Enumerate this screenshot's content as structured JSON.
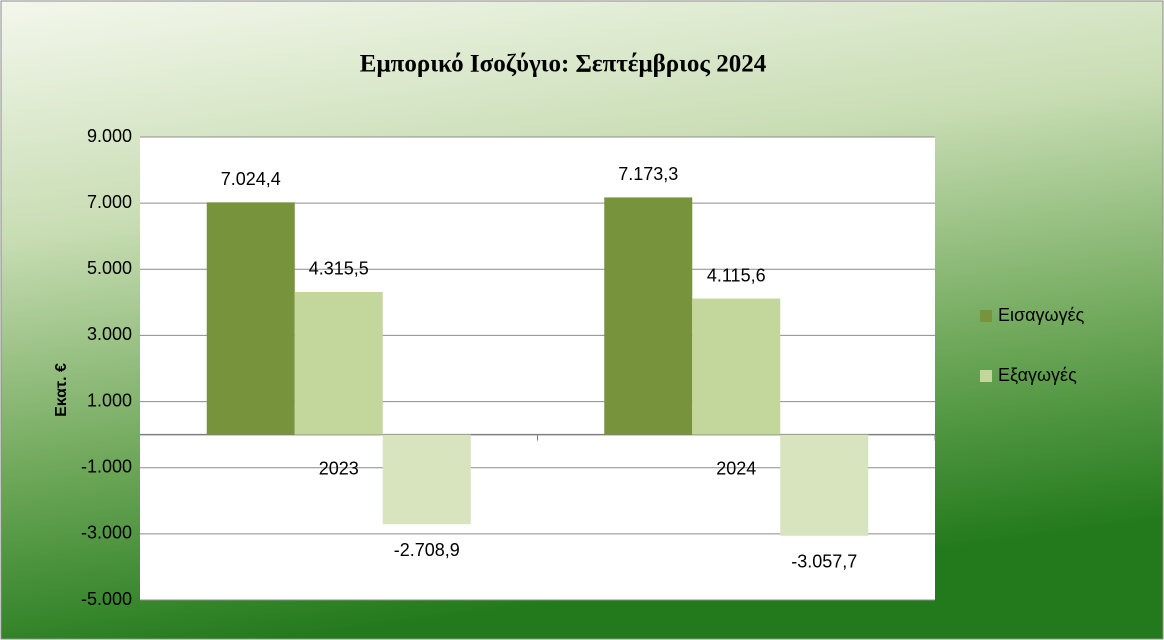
{
  "chart_data": {
    "type": "bar",
    "title": "Εμπορικό Ισοζύγιο: Σεπτέμβριος 2024",
    "y_label": "Εκατ. €",
    "categories": [
      "2023",
      "2024"
    ],
    "series": [
      {
        "name": "Εισαγωγές",
        "color": "#77933c",
        "values": [
          7024.4,
          7173.3
        ],
        "value_labels": [
          "7.024,4",
          "7.173,3"
        ]
      },
      {
        "name": "Εξαγωγές",
        "color": "#c3d69b",
        "values": [
          4315.5,
          4115.6
        ],
        "value_labels": [
          "4.315,5",
          "4.115,6"
        ]
      },
      {
        "color": "#d7e4bd",
        "values": [
          -2708.9,
          -3057.7
        ],
        "value_labels": [
          "-2.708,9",
          "-3.057,7"
        ]
      }
    ],
    "ylim": [
      -5000,
      9000
    ],
    "yticks": [
      {
        "value": -5000,
        "label": "-5.000"
      },
      {
        "value": -3000,
        "label": "-3.000"
      },
      {
        "value": -1000,
        "label": "-1.000"
      },
      {
        "value": 1000,
        "label": "1.000"
      },
      {
        "value": 3000,
        "label": "3.000"
      },
      {
        "value": 5000,
        "label": "5.000"
      },
      {
        "value": 7000,
        "label": "7.000"
      },
      {
        "value": 9000,
        "label": "9.000"
      }
    ],
    "grid": true,
    "legend": "right"
  }
}
